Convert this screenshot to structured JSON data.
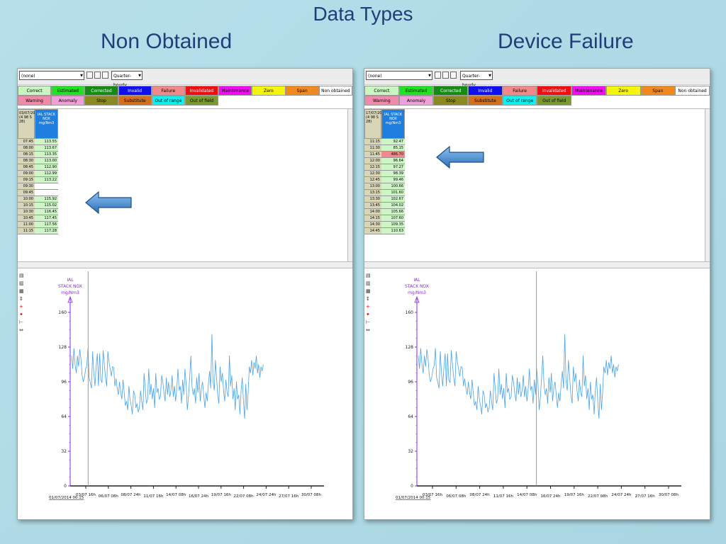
{
  "slide": {
    "title": "Data Types",
    "left_heading": "Non Obtained",
    "right_heading": "Device Failure"
  },
  "toolbar": {
    "filter_value": "(none)",
    "interval_value": "Quarter-hourly"
  },
  "legend_row1": [
    {
      "label": "Correct",
      "color": "#c8f5c0"
    },
    {
      "label": "Estimated",
      "color": "#22e022"
    },
    {
      "label": "Corrected",
      "color": "#158a15"
    },
    {
      "label": "Invalid",
      "color": "#1010ee"
    },
    {
      "label": "Failure",
      "color": "#f08a8a"
    },
    {
      "label": "Invalidated",
      "color": "#ee1010"
    },
    {
      "label": "Maintenance",
      "color": "#ee10ee"
    },
    {
      "label": "Zero",
      "color": "#f5f510"
    },
    {
      "label": "Span",
      "color": "#f08a20"
    },
    {
      "label": "Non obtained",
      "color": "#ffffff"
    }
  ],
  "legend_row2": [
    {
      "label": "Warning",
      "color": "#f08aaa"
    },
    {
      "label": "Anomaly",
      "color": "#f0a0d8"
    },
    {
      "label": "Stop",
      "color": "#8a8a20"
    },
    {
      "label": "Substitute",
      "color": "#d27020"
    },
    {
      "label": "Out of range",
      "color": "#10f0f0"
    },
    {
      "label": "Out of field",
      "color": "#7a9a30"
    }
  ],
  "panel_left": {
    "date_header": "03/07/2014 (4 98 S 28)",
    "col_header": "IAL STACK NOX mg/Nm3",
    "rows": [
      {
        "t": "07:45",
        "v": "113.55",
        "s": "ok"
      },
      {
        "t": "08:00",
        "v": "113.67",
        "s": "ok"
      },
      {
        "t": "08:15",
        "v": "113.35",
        "s": "ok"
      },
      {
        "t": "08:30",
        "v": "113.00",
        "s": "ok"
      },
      {
        "t": "08:45",
        "v": "112.90",
        "s": "ok"
      },
      {
        "t": "09:00",
        "v": "112.99",
        "s": "ok"
      },
      {
        "t": "09:15",
        "v": "113.22",
        "s": "ok"
      },
      {
        "t": "09:30",
        "v": "",
        "s": "empty"
      },
      {
        "t": "09:45",
        "v": "",
        "s": "empty"
      },
      {
        "t": "10:00",
        "v": "115.92",
        "s": "ok"
      },
      {
        "t": "10:15",
        "v": "115.02",
        "s": "ok"
      },
      {
        "t": "10:30",
        "v": "116.45",
        "s": "ok"
      },
      {
        "t": "10:45",
        "v": "117.45",
        "s": "ok"
      },
      {
        "t": "11:00",
        "v": "117.56",
        "s": "ok"
      },
      {
        "t": "11:15",
        "v": "117.28",
        "s": "ok"
      }
    ]
  },
  "panel_right": {
    "date_header": "17/07/2014 (4 98 S 28)",
    "col_header": "IAL STACK NOX mg/Nm3",
    "rows": [
      {
        "t": "11:15",
        "v": "92.47",
        "s": "ok"
      },
      {
        "t": "11:30",
        "v": "85.15",
        "s": "ok"
      },
      {
        "t": "11:45",
        "v": "486.70",
        "s": "fail"
      },
      {
        "t": "12:00",
        "v": "96.64",
        "s": "ok"
      },
      {
        "t": "12:15",
        "v": "97.27",
        "s": "ok"
      },
      {
        "t": "12:30",
        "v": "98.39",
        "s": "ok"
      },
      {
        "t": "12:45",
        "v": "99.46",
        "s": "ok"
      },
      {
        "t": "13:00",
        "v": "100.66",
        "s": "ok"
      },
      {
        "t": "13:15",
        "v": "101.60",
        "s": "ok"
      },
      {
        "t": "13:30",
        "v": "102.67",
        "s": "ok"
      },
      {
        "t": "13:45",
        "v": "104.02",
        "s": "ok"
      },
      {
        "t": "14:00",
        "v": "105.66",
        "s": "ok"
      },
      {
        "t": "14:15",
        "v": "107.60",
        "s": "ok"
      },
      {
        "t": "14:30",
        "v": "109.35",
        "s": "ok"
      },
      {
        "t": "14:45",
        "v": "110.63",
        "s": "ok"
      }
    ]
  },
  "chart_data": {
    "type": "line",
    "title": "IAL STACK NOX",
    "ylabel": "mg/Nm3",
    "y_ticks": [
      "160",
      "128",
      "96",
      "64",
      "32",
      "0"
    ],
    "x_start_label": "01/07/2014 00:15",
    "x_ticks": [
      "03/07 16h",
      "06/07 08h",
      "08/07 24h",
      "11/07 16h",
      "14/07 08h",
      "16/07 24h",
      "19/07 16h",
      "22/07 08h",
      "24/07 24h",
      "27/07 16h",
      "30/07 08h"
    ],
    "ylim": [
      0,
      160
    ],
    "series": [
      {
        "values": [
          120,
          108,
          127,
          112,
          104,
          120,
          110,
          126,
          117,
          102,
          96,
          100,
          108,
          111,
          127,
          100,
          95,
          90,
          124,
          104,
          92,
          110,
          122,
          92,
          122,
          98,
          95,
          125,
          112,
          100,
          92,
          124,
          114,
          108,
          101,
          110,
          109,
          92,
          99,
          90,
          84,
          96,
          86,
          80,
          98,
          86,
          74,
          78,
          70,
          92,
          80,
          74,
          66,
          88,
          84,
          72,
          76,
          68,
          72,
          88,
          78,
          70,
          104,
          90,
          76,
          80,
          108,
          84,
          94,
          80,
          90,
          72,
          104,
          86,
          90,
          80,
          82,
          102,
          96,
          86,
          78,
          100,
          84,
          96,
          82,
          88,
          102,
          82,
          92,
          78,
          90,
          108,
          88,
          92,
          76,
          98,
          84,
          108,
          94,
          70,
          82,
          100,
          120,
          92,
          84,
          90,
          76,
          100,
          86,
          104,
          78,
          90,
          96,
          84,
          72,
          86,
          78,
          94,
          106,
          90,
          140,
          96,
          88,
          116,
          100,
          84,
          76,
          110,
          96,
          104,
          88,
          78,
          98,
          86,
          82,
          120,
          92,
          102,
          80,
          90,
          70,
          96,
          80,
          84,
          66,
          88,
          100,
          78,
          62,
          94,
          70,
          86,
          110,
          104,
          116,
          102,
          114,
          108,
          120,
          104,
          112,
          100,
          110,
          106,
          112
        ]
      }
    ]
  },
  "panel_left_cursor": 0.042,
  "panel_right_cursor": 0.59
}
